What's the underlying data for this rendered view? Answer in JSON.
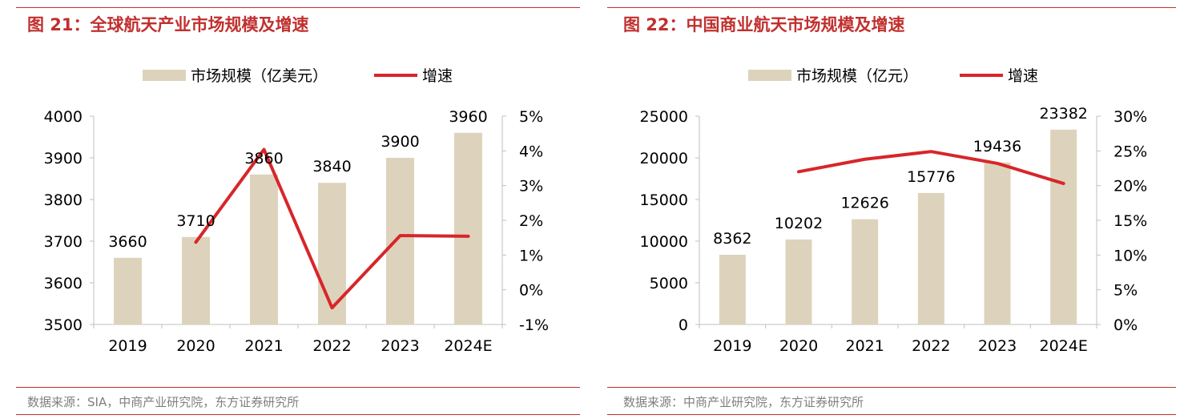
{
  "charts": [
    {
      "fig_title": "图 21：全球航天产业市场规模及增速",
      "source": "数据来源：SIA，中商产业研究院，东方证券研究所"
    },
    {
      "fig_title": "图 22：中国商业航天市场规模及增速",
      "source": "数据来源：中商产业研究院，东方证券研究所"
    }
  ],
  "chart_data": [
    {
      "type": "bar",
      "title": "全球航天产业市场规模及增速",
      "categories": [
        "2019",
        "2020",
        "2021",
        "2022",
        "2023",
        "2024E"
      ],
      "series": [
        {
          "name": "市场规模（亿美元）",
          "type": "bar",
          "axis": "left",
          "color": "#ddd3bc",
          "values": [
            3660,
            3710,
            3860,
            3840,
            3900,
            3960
          ],
          "labels": [
            "3660",
            "3710",
            "3860",
            "3840",
            "3900",
            "3960"
          ]
        },
        {
          "name": "增速",
          "type": "line",
          "axis": "right",
          "color": "#d7262a",
          "values": [
            null,
            1.37,
            4.04,
            -0.52,
            1.56,
            1.54
          ]
        }
      ],
      "y_left": {
        "min": 3500,
        "max": 4000,
        "ticks": [
          "3500",
          "3600",
          "3700",
          "3800",
          "3900",
          "4000"
        ]
      },
      "y_right": {
        "min": -1,
        "max": 5,
        "ticks": [
          "-1%",
          "0%",
          "1%",
          "2%",
          "3%",
          "4%",
          "5%"
        ]
      },
      "legend_position": "top-center",
      "grid": false
    },
    {
      "type": "bar",
      "title": "中国商业航天市场规模及增速",
      "categories": [
        "2019",
        "2020",
        "2021",
        "2022",
        "2023",
        "2024E"
      ],
      "series": [
        {
          "name": "市场规模（亿元）",
          "type": "bar",
          "axis": "left",
          "color": "#ddd3bc",
          "values": [
            8362,
            10202,
            12626,
            15776,
            19436,
            23382
          ],
          "labels": [
            "8362",
            "10202",
            "12626",
            "15776",
            "19436",
            "23382"
          ]
        },
        {
          "name": "增速",
          "type": "line",
          "axis": "right",
          "color": "#d7262a",
          "values": [
            null,
            22.0,
            23.8,
            24.9,
            23.2,
            20.3
          ]
        }
      ],
      "y_left": {
        "min": 0,
        "max": 25000,
        "ticks": [
          "0",
          "5000",
          "10000",
          "15000",
          "20000",
          "25000"
        ]
      },
      "y_right": {
        "min": 0,
        "max": 30,
        "ticks": [
          "0%",
          "5%",
          "10%",
          "15%",
          "20%",
          "25%",
          "30%"
        ]
      },
      "legend_position": "top-center",
      "grid": false
    }
  ]
}
